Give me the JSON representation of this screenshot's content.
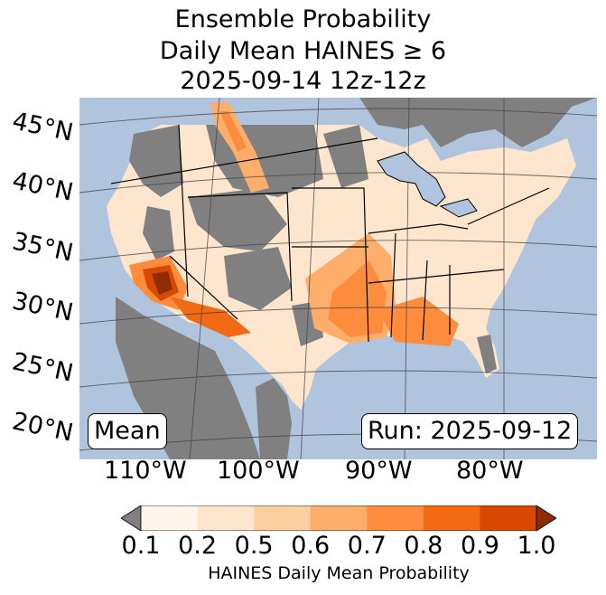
{
  "title": {
    "line1": "Ensemble Probability",
    "line2": "Daily Mean HAINES ≥ 6",
    "line3": "2025-09-14 12z-12z"
  },
  "map": {
    "region": "Contiguous United States",
    "lat_labels": [
      "45°N",
      "40°N",
      "35°N",
      "30°N",
      "25°N",
      "20°N"
    ],
    "lon_labels": [
      "110°W",
      "100°W",
      "90°W",
      "80°W"
    ],
    "ocean_color": "#b0c4de",
    "land_nodata_color": "#808080",
    "boundary_color": "#000000"
  },
  "boxes": {
    "mean": "Mean",
    "run": "Run: 2025-09-12"
  },
  "colorbar": {
    "ticks": [
      "0.1",
      "0.2",
      "0.5",
      "0.6",
      "0.7",
      "0.8",
      "0.9",
      "1.0"
    ],
    "colors": [
      "#fff5eb",
      "#fee6ce",
      "#fdd0a2",
      "#fdae6b",
      "#fd8d3c",
      "#f16913",
      "#d94801"
    ],
    "under_color": "#808080",
    "over_color": "#8c2d04",
    "label": "HAINES Daily Mean Probability"
  }
}
